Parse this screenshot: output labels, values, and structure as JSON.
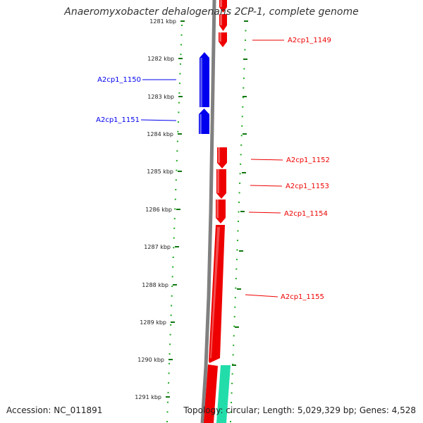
{
  "title": "Anaeromyxobacter dehalogenans 2CP-1, complete genome",
  "accession": "Accession: NC_011891",
  "footer": "Topology: circular; Length: 5,029,329 bp; Genes: 4,528",
  "colors": {
    "forward_gene": "#ee0000",
    "reverse_gene": "#0000ee",
    "other_feature": "#22ddaa",
    "backbone": "#808080",
    "tick": "#117711",
    "dot": "#22aa22"
  },
  "ruler": {
    "ticks": [
      {
        "label": "1281 kbp"
      },
      {
        "label": "1282 kbp"
      },
      {
        "label": "1283 kbp"
      },
      {
        "label": "1284 kbp"
      },
      {
        "label": "1285 kbp"
      },
      {
        "label": "1286 kbp"
      },
      {
        "label": "1287 kbp"
      },
      {
        "label": "1288 kbp"
      },
      {
        "label": "1289 kbp"
      },
      {
        "label": "1290 kbp"
      },
      {
        "label": "1291 kbp"
      }
    ]
  },
  "genes": [
    {
      "name": "A2cp1_1149",
      "strand": "+"
    },
    {
      "name": "A2cp1_1150",
      "strand": "-"
    },
    {
      "name": "A2cp1_1151",
      "strand": "-"
    },
    {
      "name": "A2cp1_1152",
      "strand": "+"
    },
    {
      "name": "A2cp1_1153",
      "strand": "+"
    },
    {
      "name": "A2cp1_1154",
      "strand": "+"
    },
    {
      "name": "A2cp1_1155",
      "strand": "+"
    }
  ]
}
